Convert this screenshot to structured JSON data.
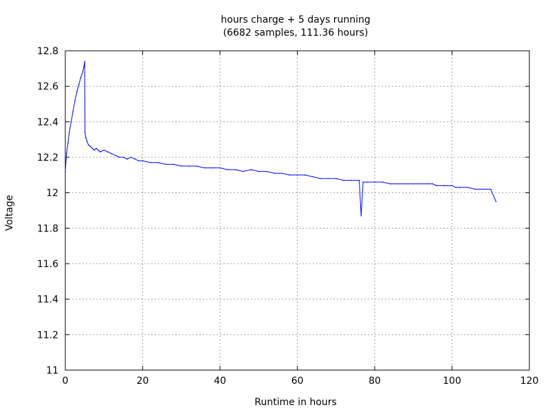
{
  "chart_data": {
    "type": "line",
    "title": "hours charge + 5 days running",
    "subtitle": "(6682 samples, 111.36 hours)",
    "xlabel": "Runtime in hours",
    "ylabel": "Voltage",
    "xlim": [
      0,
      120
    ],
    "ylim": [
      11,
      12.8
    ],
    "x_ticks": [
      0,
      20,
      40,
      60,
      80,
      100,
      120
    ],
    "y_ticks": [
      11,
      11.2,
      11.4,
      11.6,
      11.8,
      12,
      12.2,
      12.4,
      12.6,
      12.8
    ],
    "grid": true,
    "series": [
      {
        "color": "#0000ff",
        "x": [
          0,
          0.3,
          0.7,
          1.0,
          1.5,
          2.0,
          2.5,
          3.0,
          3.5,
          4.0,
          4.5,
          4.8,
          5.0,
          5.1,
          5.3,
          5.6,
          6.0,
          6.5,
          7.0,
          7.5,
          8.0,
          8.5,
          9.0,
          10.0,
          11.0,
          12.0,
          13.0,
          14.0,
          15.0,
          16.0,
          17.0,
          18.0,
          19.0,
          20.0,
          22.0,
          24.0,
          26.0,
          28.0,
          30.0,
          32.0,
          34.0,
          36.0,
          38.0,
          40.0,
          42.0,
          44.0,
          46.0,
          48.0,
          50.0,
          52.0,
          54.0,
          56.0,
          58.0,
          60.0,
          62.0,
          64.0,
          66.0,
          68.0,
          70.0,
          72.0,
          74.0,
          76.0,
          76.5,
          77.0,
          78.0,
          80.0,
          82.0,
          84.0,
          86.0,
          88.0,
          90.0,
          92.0,
          94.0,
          95.0,
          96.0,
          98.0,
          100.0,
          101.0,
          102.0,
          104.0,
          106.0,
          108.0,
          110.0,
          111.36
        ],
        "y": [
          12.12,
          12.22,
          12.28,
          12.34,
          12.4,
          12.46,
          12.52,
          12.57,
          12.61,
          12.65,
          12.68,
          12.71,
          12.74,
          12.34,
          12.31,
          12.29,
          12.27,
          12.26,
          12.25,
          12.24,
          12.25,
          12.24,
          12.23,
          12.24,
          12.23,
          12.22,
          12.21,
          12.2,
          12.2,
          12.19,
          12.2,
          12.19,
          12.18,
          12.18,
          12.17,
          12.17,
          12.16,
          12.16,
          12.15,
          12.15,
          12.15,
          12.14,
          12.14,
          12.14,
          12.13,
          12.13,
          12.12,
          12.13,
          12.12,
          12.12,
          12.11,
          12.11,
          12.1,
          12.1,
          12.1,
          12.09,
          12.08,
          12.08,
          12.08,
          12.07,
          12.07,
          12.07,
          11.87,
          12.06,
          12.06,
          12.06,
          12.06,
          12.05,
          12.05,
          12.05,
          12.05,
          12.05,
          12.05,
          12.05,
          12.04,
          12.04,
          12.04,
          12.03,
          12.03,
          12.03,
          12.02,
          12.02,
          12.02,
          11.95
        ]
      }
    ]
  }
}
